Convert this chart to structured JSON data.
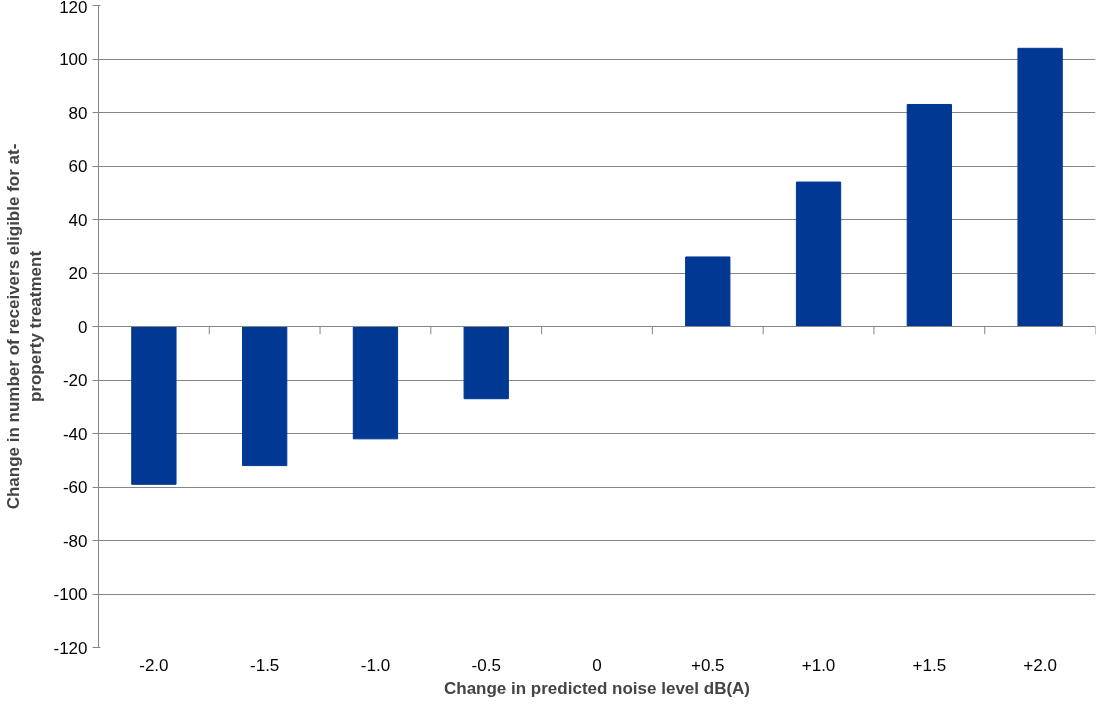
{
  "chart_data": {
    "type": "bar",
    "xlabel": "Change in predicted noise level dB(A)",
    "ylabel": "Change in number of receivers eligible for at-property treatment",
    "categories": [
      "-2.0",
      "-1.5",
      "-1.0",
      "-0.5",
      "0",
      "+0.5",
      "+1.0",
      "+1.5",
      "+2.0"
    ],
    "values": [
      -59,
      -52,
      -42,
      -27,
      0,
      26,
      54,
      83,
      104
    ],
    "color": "#003893",
    "ylim": [
      -120,
      120
    ],
    "yticks": [
      -120,
      -100,
      -80,
      -60,
      -40,
      -20,
      0,
      20,
      40,
      60,
      80,
      100,
      120
    ],
    "grid": "y"
  }
}
